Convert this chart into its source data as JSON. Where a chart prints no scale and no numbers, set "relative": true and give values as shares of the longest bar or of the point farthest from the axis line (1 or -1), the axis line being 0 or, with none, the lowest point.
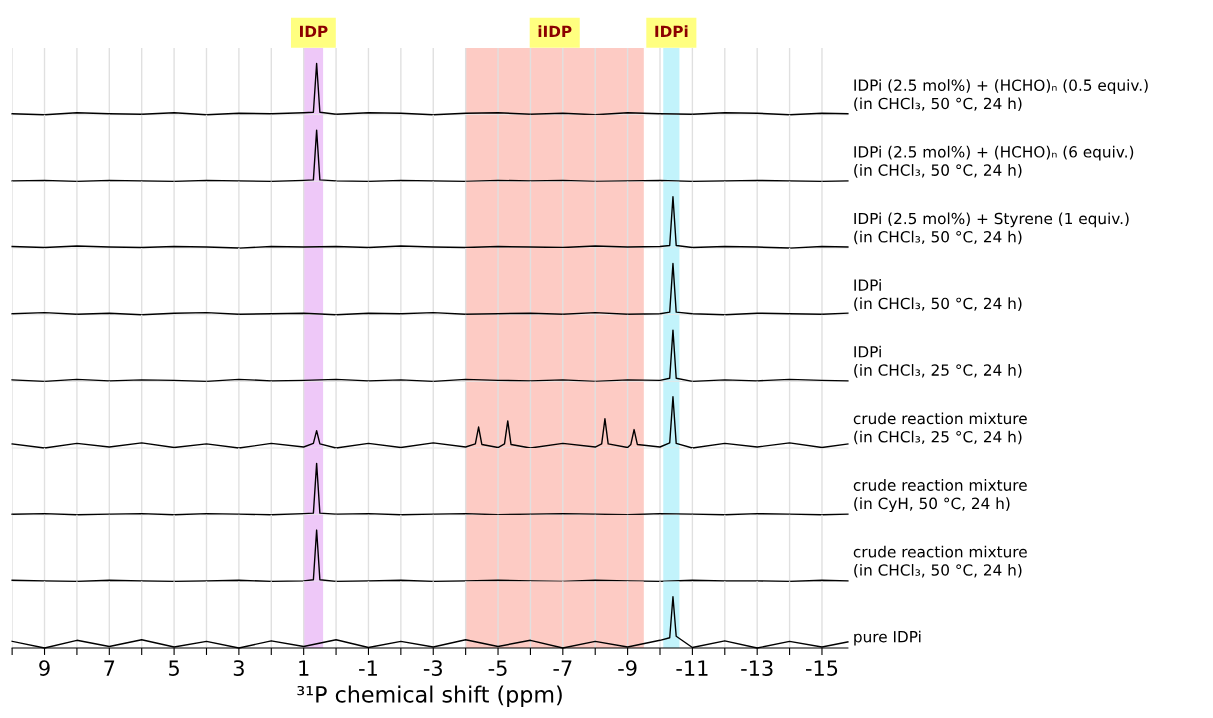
{
  "chart_data": [
    {
      "type": "line",
      "relative": true,
      "grid": "x",
      "tick_labels": false,
      "bands": [
        {
          "axis": "x",
          "from": 1.0,
          "to": 0.4,
          "label": "IDP",
          "color": "#eec8f8"
        },
        {
          "axis": "x",
          "from": -4.0,
          "to": -9.5,
          "label": "iIDP",
          "color": "#fdcbc4"
        },
        {
          "axis": "x",
          "from": -10.1,
          "to": -10.6,
          "label": "IDPi",
          "color": "#c2f3fb"
        }
      ],
      "xlim": [
        10,
        -15.8
      ],
      "xticks": [
        {
          "value": 10,
          "label": null
        },
        9,
        {
          "value": 8,
          "label": null
        },
        7,
        {
          "value": 6,
          "label": null
        },
        5,
        {
          "value": 4,
          "label": null
        },
        3,
        {
          "value": 2,
          "label": null
        },
        1,
        {
          "value": 0,
          "label": null
        },
        -1,
        {
          "value": -2,
          "label": null
        },
        -3,
        {
          "value": -4,
          "label": null
        },
        -5,
        {
          "value": -6,
          "label": null
        },
        -7,
        {
          "value": -8,
          "label": null
        },
        -9,
        {
          "value": -10,
          "label": null
        },
        -11,
        {
          "value": -12,
          "label": null
        },
        -13,
        {
          "value": -14,
          "label": null
        },
        -15
      ],
      "annotations": [
        "IDPi (2.5 mol%) + (HCHO)ₙ (0.5 equiv.)\n(in CHCl₃, 50 °C, 24 h)"
      ],
      "series": [
        {
          "color": "#000000",
          "x": [
            10,
            9,
            8,
            7,
            6,
            5,
            4,
            3,
            2,
            1,
            0.7,
            0.6,
            0.5,
            0,
            -1,
            -2,
            -3,
            -4,
            -5,
            -6,
            -7,
            -8,
            -9,
            -10,
            -11,
            -12,
            -13,
            -14,
            -15,
            -15.8
          ],
          "values": [
            0.02,
            0,
            0.04,
            0.02,
            0.01,
            0.04,
            0,
            0.03,
            0.02,
            0.04,
            0.05,
            1,
            0.05,
            0.01,
            0.04,
            0.03,
            0,
            0.03,
            0.04,
            0.01,
            0.03,
            0,
            0.04,
            0.02,
            0.01,
            0.04,
            0.03,
            0,
            0.03,
            0.02
          ]
        }
      ]
    },
    {
      "type": "line",
      "relative": true,
      "grid": "x",
      "tick_labels": false,
      "bands": [
        {
          "axis": "x",
          "from": 1.0,
          "to": 0.4,
          "color": "#eec8f8"
        },
        {
          "axis": "x",
          "from": -4.0,
          "to": -9.5,
          "color": "#fdcbc4"
        },
        {
          "axis": "x",
          "from": -10.1,
          "to": -10.6,
          "color": "#c2f3fb"
        }
      ],
      "xlim": [
        10,
        -15.8
      ],
      "xticks": [
        {
          "value": 10,
          "label": null
        },
        9,
        {
          "value": 8,
          "label": null
        },
        7,
        {
          "value": 6,
          "label": null
        },
        5,
        {
          "value": 4,
          "label": null
        },
        3,
        {
          "value": 2,
          "label": null
        },
        1,
        {
          "value": 0,
          "label": null
        },
        -1,
        {
          "value": -2,
          "label": null
        },
        -3,
        {
          "value": -4,
          "label": null
        },
        -5,
        {
          "value": -6,
          "label": null
        },
        -7,
        {
          "value": -8,
          "label": null
        },
        -9,
        {
          "value": -10,
          "label": null
        },
        -11,
        {
          "value": -12,
          "label": null
        },
        -13,
        {
          "value": -14,
          "label": null
        },
        -15
      ],
      "annotations": [
        "IDPi (2.5 mol%) + (HCHO)ₙ (6 equiv.)\n(in CHCl₃, 50 °C, 24 h)"
      ],
      "series": [
        {
          "color": "#000000",
          "x": [
            10,
            9,
            8,
            7,
            6,
            5,
            4,
            3,
            2,
            1,
            0.7,
            0.6,
            0.5,
            0,
            -1,
            -2,
            -3,
            -4,
            -5,
            -6,
            -7,
            -8,
            -9,
            -10,
            -11,
            -12,
            -13,
            -14,
            -15,
            -15.8
          ],
          "values": [
            0.01,
            0.02,
            0,
            0.02,
            0.01,
            0,
            0.02,
            0.01,
            0,
            0.02,
            0.03,
            1,
            0.03,
            0.01,
            0,
            0.02,
            0.01,
            0,
            0.02,
            0.01,
            0.02,
            0,
            0.01,
            0.02,
            0,
            0.01,
            0.02,
            0.01,
            0,
            0.01
          ]
        }
      ]
    },
    {
      "type": "line",
      "relative": true,
      "grid": "x",
      "tick_labels": false,
      "bands": [
        {
          "axis": "x",
          "from": 1.0,
          "to": 0.4,
          "color": "#eec8f8"
        },
        {
          "axis": "x",
          "from": -4.0,
          "to": -9.5,
          "color": "#fdcbc4"
        },
        {
          "axis": "x",
          "from": -10.1,
          "to": -10.6,
          "color": "#c2f3fb"
        }
      ],
      "xlim": [
        10,
        -15.8
      ],
      "xticks": [
        {
          "value": 10,
          "label": null
        },
        9,
        {
          "value": 8,
          "label": null
        },
        7,
        {
          "value": 6,
          "label": null
        },
        5,
        {
          "value": 4,
          "label": null
        },
        3,
        {
          "value": 2,
          "label": null
        },
        1,
        {
          "value": 0,
          "label": null
        },
        -1,
        {
          "value": -2,
          "label": null
        },
        -3,
        {
          "value": -4,
          "label": null
        },
        -5,
        {
          "value": -6,
          "label": null
        },
        -7,
        {
          "value": -8,
          "label": null
        },
        -9,
        {
          "value": -10,
          "label": null
        },
        -11,
        {
          "value": -12,
          "label": null
        },
        -13,
        {
          "value": -14,
          "label": null
        },
        -15
      ],
      "annotations": [
        "IDPi (2.5 mol%) + Styrene (1 equiv.)\n(in CHCl₃, 50 °C, 24 h)"
      ],
      "series": [
        {
          "color": "#000000",
          "x": [
            10,
            9,
            8,
            7,
            6,
            5,
            4,
            3,
            2,
            1,
            0,
            -1,
            -2,
            -3,
            -4,
            -5,
            -6,
            -7,
            -8,
            -9,
            -10,
            -10.3,
            -10.4,
            -10.5,
            -11,
            -12,
            -13,
            -14,
            -15,
            -15.8
          ],
          "values": [
            0.03,
            0.01,
            0.04,
            0.02,
            0.01,
            0.03,
            0.02,
            0,
            0.03,
            0.02,
            0.03,
            0.01,
            0.04,
            0.02,
            0.01,
            0.03,
            0.02,
            0.01,
            0.04,
            0.02,
            0.03,
            0.05,
            1,
            0.05,
            0.01,
            0.03,
            0.02,
            0,
            0.03,
            0.02
          ]
        }
      ]
    },
    {
      "type": "line",
      "relative": true,
      "grid": "x",
      "tick_labels": false,
      "bands": [
        {
          "axis": "x",
          "from": 1.0,
          "to": 0.4,
          "color": "#eec8f8"
        },
        {
          "axis": "x",
          "from": -4.0,
          "to": -9.5,
          "color": "#fdcbc4"
        },
        {
          "axis": "x",
          "from": -10.1,
          "to": -10.6,
          "color": "#c2f3fb"
        }
      ],
      "xlim": [
        10,
        -15.8
      ],
      "xticks": [
        {
          "value": 10,
          "label": null
        },
        9,
        {
          "value": 8,
          "label": null
        },
        7,
        {
          "value": 6,
          "label": null
        },
        5,
        {
          "value": 4,
          "label": null
        },
        3,
        {
          "value": 2,
          "label": null
        },
        1,
        {
          "value": 0,
          "label": null
        },
        -1,
        {
          "value": -2,
          "label": null
        },
        -3,
        {
          "value": -4,
          "label": null
        },
        -5,
        {
          "value": -6,
          "label": null
        },
        -7,
        {
          "value": -8,
          "label": null
        },
        -9,
        {
          "value": -10,
          "label": null
        },
        -11,
        {
          "value": -12,
          "label": null
        },
        -13,
        {
          "value": -14,
          "label": null
        },
        -15
      ],
      "annotations": [
        "IDPi\n(in CHCl₃, 50 °C, 24 h)"
      ],
      "series": [
        {
          "color": "#000000",
          "x": [
            10,
            9,
            8,
            7,
            6,
            5,
            4,
            3,
            2,
            1,
            0,
            -1,
            -2,
            -3,
            -4,
            -5,
            -6,
            -7,
            -8,
            -9,
            -10,
            -10.3,
            -10.4,
            -10.5,
            -11,
            -12,
            -13,
            -14,
            -15,
            -15.8
          ],
          "values": [
            0.02,
            0.04,
            0.01,
            0.03,
            0,
            0.03,
            0.04,
            0.01,
            0.02,
            0.03,
            0,
            0.03,
            0.02,
            0.04,
            0.01,
            0.02,
            0.03,
            0.01,
            0.04,
            0.01,
            0.02,
            0.05,
            1,
            0.05,
            0.02,
            0,
            0.03,
            0.02,
            0.01,
            0.03
          ]
        }
      ]
    },
    {
      "type": "line",
      "relative": true,
      "grid": "x",
      "tick_labels": false,
      "bands": [
        {
          "axis": "x",
          "from": 1.0,
          "to": 0.4,
          "color": "#eec8f8"
        },
        {
          "axis": "x",
          "from": -4.0,
          "to": -9.5,
          "color": "#fdcbc4"
        },
        {
          "axis": "x",
          "from": -10.1,
          "to": -10.6,
          "color": "#c2f3fb"
        }
      ],
      "xlim": [
        10,
        -15.8
      ],
      "xticks": [
        {
          "value": 10,
          "label": null
        },
        9,
        {
          "value": 8,
          "label": null
        },
        7,
        {
          "value": 6,
          "label": null
        },
        5,
        {
          "value": 4,
          "label": null
        },
        3,
        {
          "value": 2,
          "label": null
        },
        1,
        {
          "value": 0,
          "label": null
        },
        -1,
        {
          "value": -2,
          "label": null
        },
        -3,
        {
          "value": -4,
          "label": null
        },
        -5,
        {
          "value": -6,
          "label": null
        },
        -7,
        {
          "value": -8,
          "label": null
        },
        -9,
        {
          "value": -10,
          "label": null
        },
        -11,
        {
          "value": -12,
          "label": null
        },
        -13,
        {
          "value": -14,
          "label": null
        },
        -15
      ],
      "annotations": [
        "IDPi\n(in CHCl₃, 25 °C, 24 h)"
      ],
      "series": [
        {
          "color": "#000000",
          "x": [
            10,
            9,
            8,
            7,
            6,
            5,
            4,
            3,
            2,
            1,
            0,
            -1,
            -2,
            -3,
            -4,
            -5,
            -6,
            -7,
            -8,
            -9,
            -10,
            -10.3,
            -10.4,
            -10.5,
            -11,
            -12,
            -13,
            -14,
            -15,
            -15.8
          ],
          "values": [
            0.03,
            0,
            0.04,
            0.01,
            0.03,
            0.02,
            0,
            0.04,
            0.01,
            0.02,
            0.04,
            0.01,
            0.03,
            0,
            0.04,
            0.02,
            0.01,
            0.03,
            0,
            0.03,
            0.02,
            0.06,
            1,
            0.06,
            0,
            0.03,
            0.01,
            0.04,
            0.02,
            0.01
          ]
        }
      ]
    },
    {
      "type": "line",
      "relative": true,
      "grid": "x",
      "tick_labels": false,
      "bands": [
        {
          "axis": "x",
          "from": 1.0,
          "to": 0.4,
          "color": "#eec8f8"
        },
        {
          "axis": "x",
          "from": -4.0,
          "to": -9.5,
          "color": "#fdcbc4"
        },
        {
          "axis": "x",
          "from": -10.1,
          "to": -10.6,
          "color": "#c2f3fb"
        }
      ],
      "xlim": [
        10,
        -15.8
      ],
      "xticks": [
        {
          "value": 10,
          "label": null
        },
        9,
        {
          "value": 8,
          "label": null
        },
        7,
        {
          "value": 6,
          "label": null
        },
        5,
        {
          "value": 4,
          "label": null
        },
        3,
        {
          "value": 2,
          "label": null
        },
        1,
        {
          "value": 0,
          "label": null
        },
        -1,
        {
          "value": -2,
          "label": null
        },
        -3,
        {
          "value": -4,
          "label": null
        },
        -5,
        {
          "value": -6,
          "label": null
        },
        -7,
        {
          "value": -8,
          "label": null
        },
        -9,
        {
          "value": -10,
          "label": null
        },
        -11,
        {
          "value": -12,
          "label": null
        },
        -13,
        {
          "value": -14,
          "label": null
        },
        -15
      ],
      "annotations": [
        "crude reaction mixture\n(in CHCl₃, 25 °C, 24 h)"
      ],
      "series": [
        {
          "color": "#000000",
          "x": [
            10,
            9,
            8,
            7,
            6,
            5,
            4,
            3,
            2,
            1,
            0.7,
            0.6,
            0.5,
            0,
            -1,
            -2,
            -3,
            -4,
            -4.3,
            -4.4,
            -4.5,
            -5,
            -5.2,
            -5.3,
            -5.4,
            -6,
            -7,
            -8,
            -8.2,
            -8.3,
            -8.4,
            -9,
            -9.1,
            -9.2,
            -9.3,
            -10,
            -10.3,
            -10.4,
            -10.5,
            -11,
            -12,
            -13,
            -14,
            -15,
            -15.8
          ],
          "values": [
            0.08,
            0,
            0.09,
            0.02,
            0.1,
            0.01,
            0.08,
            0,
            0.09,
            0.02,
            0.09,
            0.34,
            0.08,
            0,
            0.09,
            0.01,
            0.1,
            0.02,
            0.08,
            0.41,
            0.07,
            0.01,
            0.08,
            0.53,
            0.07,
            0,
            0.09,
            0.02,
            0.08,
            0.57,
            0.08,
            0.01,
            0.07,
            0.36,
            0.07,
            0.02,
            0.1,
            1,
            0.09,
            0,
            0.09,
            0.02,
            0.1,
            0.01,
            0.08
          ]
        }
      ]
    },
    {
      "type": "line",
      "relative": true,
      "grid": "x",
      "tick_labels": false,
      "bands": [
        {
          "axis": "x",
          "from": 1.0,
          "to": 0.4,
          "color": "#eec8f8"
        },
        {
          "axis": "x",
          "from": -4.0,
          "to": -9.5,
          "color": "#fdcbc4"
        },
        {
          "axis": "x",
          "from": -10.1,
          "to": -10.6,
          "color": "#c2f3fb"
        }
      ],
      "xlim": [
        10,
        -15.8
      ],
      "xticks": [
        {
          "value": 10,
          "label": null
        },
        9,
        {
          "value": 8,
          "label": null
        },
        7,
        {
          "value": 6,
          "label": null
        },
        5,
        {
          "value": 4,
          "label": null
        },
        3,
        {
          "value": 2,
          "label": null
        },
        1,
        {
          "value": 0,
          "label": null
        },
        -1,
        {
          "value": -2,
          "label": null
        },
        -3,
        {
          "value": -4,
          "label": null
        },
        -5,
        {
          "value": -6,
          "label": null
        },
        -7,
        {
          "value": -8,
          "label": null
        },
        -9,
        {
          "value": -10,
          "label": null
        },
        -11,
        {
          "value": -12,
          "label": null
        },
        -13,
        {
          "value": -14,
          "label": null
        },
        -15
      ],
      "annotations": [
        "crude reaction mixture\n(in CyH, 50 °C, 24 h)"
      ],
      "series": [
        {
          "color": "#000000",
          "x": [
            10,
            9,
            8,
            7,
            6,
            5,
            4,
            3,
            2,
            1,
            0.7,
            0.6,
            0.5,
            0,
            -1,
            -2,
            -3,
            -4,
            -5,
            -6,
            -7,
            -8,
            -9,
            -10,
            -11,
            -12,
            -13,
            -14,
            -15,
            -15.8
          ],
          "values": [
            0.01,
            0.02,
            0,
            0.01,
            0.02,
            0,
            0.02,
            0.01,
            0,
            0.02,
            0.03,
            1,
            0.03,
            0.01,
            0.02,
            0,
            0.01,
            0.02,
            0,
            0.01,
            0.02,
            0.01,
            0,
            0.02,
            0.01,
            0,
            0.02,
            0.01,
            0,
            0.01
          ]
        }
      ]
    },
    {
      "type": "line",
      "relative": true,
      "grid": "x",
      "tick_labels": false,
      "bands": [
        {
          "axis": "x",
          "from": 1.0,
          "to": 0.4,
          "color": "#eec8f8"
        },
        {
          "axis": "x",
          "from": -4.0,
          "to": -9.5,
          "color": "#fdcbc4"
        },
        {
          "axis": "x",
          "from": -10.1,
          "to": -10.6,
          "color": "#c2f3fb"
        }
      ],
      "xlim": [
        10,
        -15.8
      ],
      "xticks": [
        {
          "value": 10,
          "label": null
        },
        9,
        {
          "value": 8,
          "label": null
        },
        7,
        {
          "value": 6,
          "label": null
        },
        5,
        {
          "value": 4,
          "label": null
        },
        3,
        {
          "value": 2,
          "label": null
        },
        1,
        {
          "value": 0,
          "label": null
        },
        -1,
        {
          "value": -2,
          "label": null
        },
        -3,
        {
          "value": -4,
          "label": null
        },
        -5,
        {
          "value": -6,
          "label": null
        },
        -7,
        {
          "value": -8,
          "label": null
        },
        -9,
        {
          "value": -10,
          "label": null
        },
        -11,
        {
          "value": -12,
          "label": null
        },
        -13,
        {
          "value": -14,
          "label": null
        },
        -15
      ],
      "annotations": [
        "crude reaction mixture\n(in CHCl₃, 50 °C, 24 h)"
      ],
      "series": [
        {
          "color": "#000000",
          "x": [
            10,
            9,
            8,
            7,
            6,
            5,
            4,
            3,
            2,
            1,
            0.7,
            0.6,
            0.5,
            0,
            -1,
            -2,
            -3,
            -4,
            -5,
            -6,
            -7,
            -8,
            -9,
            -10,
            -11,
            -12,
            -13,
            -14,
            -15,
            -15.8
          ],
          "values": [
            0.02,
            0.01,
            0,
            0.02,
            0.01,
            0,
            0.01,
            0.02,
            0,
            0.01,
            0.03,
            1,
            0.03,
            0,
            0.01,
            0.02,
            0,
            0.01,
            0.02,
            0.01,
            0,
            0.02,
            0.01,
            0,
            0.02,
            0.01,
            0.01,
            0,
            0.02,
            0.01
          ]
        }
      ]
    },
    {
      "type": "line",
      "relative": true,
      "xlim": [
        10,
        -15.8
      ],
      "xticks": [
        {
          "value": 10,
          "label": null
        },
        9,
        {
          "value": 8,
          "label": null
        },
        7,
        {
          "value": 6,
          "label": null
        },
        5,
        {
          "value": 4,
          "label": null
        },
        3,
        {
          "value": 2,
          "label": null
        },
        1,
        {
          "value": 0,
          "label": null
        },
        -1,
        {
          "value": -2,
          "label": null
        },
        -3,
        {
          "value": -4,
          "label": null
        },
        -5,
        {
          "value": -6,
          "label": null
        },
        -7,
        {
          "value": -8,
          "label": null
        },
        -9,
        {
          "value": -10,
          "label": null
        },
        -11,
        {
          "value": -12,
          "label": null
        },
        -13,
        {
          "value": -14,
          "label": null
        },
        -15
      ],
      "grid": "x",
      "tick_labels": "x",
      "xlabel": "³¹P chemical shift (ppm)",
      "bands": [
        {
          "axis": "x",
          "from": 1.0,
          "to": 0.4,
          "color": "#eec8f8"
        },
        {
          "axis": "x",
          "from": -4.0,
          "to": -9.5,
          "color": "#fdcbc4"
        },
        {
          "axis": "x",
          "from": -10.1,
          "to": -10.6,
          "color": "#c2f3fb"
        }
      ],
      "annotations": [
        "pure IDPi"
      ],
      "series": [
        {
          "color": "#000000",
          "x": [
            10,
            9,
            8,
            7,
            6,
            5,
            4,
            3,
            2,
            1,
            0,
            -1,
            -2,
            -3,
            -4,
            -5,
            -6,
            -7,
            -8,
            -9,
            -10,
            -10.3,
            -10.4,
            -10.5,
            -11,
            -12,
            -13,
            -14,
            -15,
            -15.8
          ],
          "values": [
            0.13,
            0,
            0.15,
            0.03,
            0.16,
            0.02,
            0.13,
            0,
            0.14,
            0.03,
            0.16,
            0.01,
            0.13,
            0.02,
            0.16,
            0.03,
            0.15,
            0,
            0.13,
            0.02,
            0.15,
            0.2,
            1,
            0.23,
            0.01,
            0.14,
            0,
            0.13,
            0.02,
            0.12
          ]
        }
      ]
    }
  ]
}
